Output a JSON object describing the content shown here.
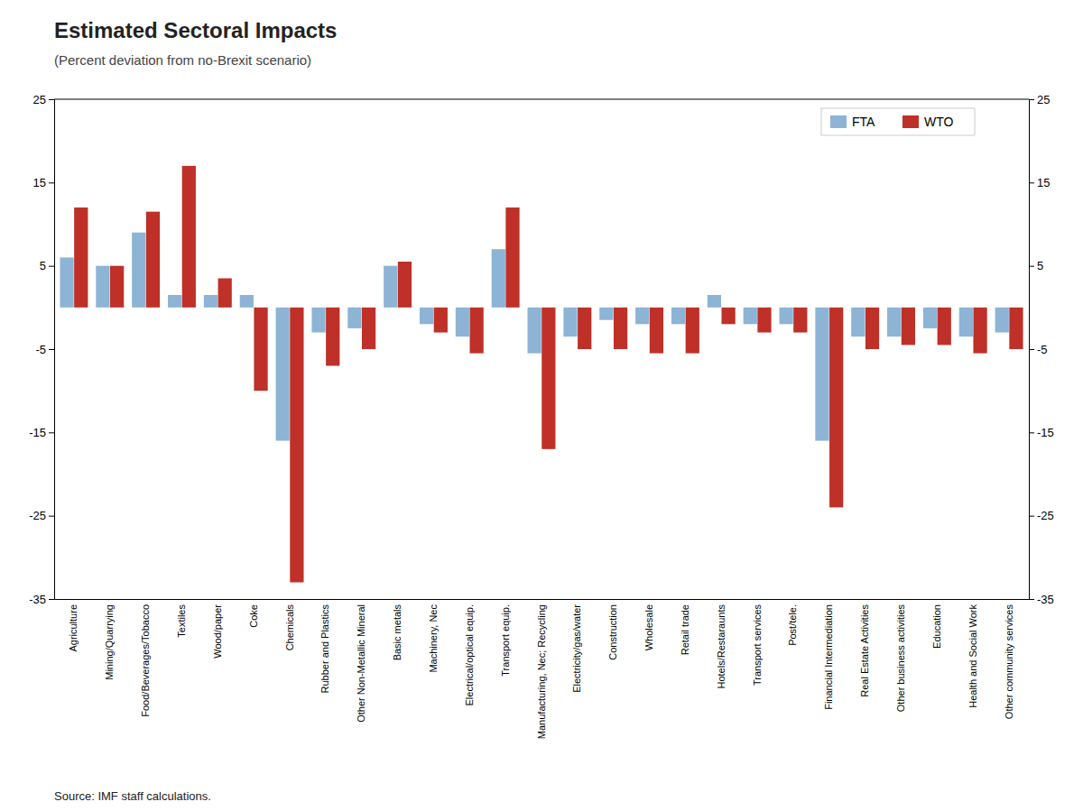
{
  "chart_data": {
    "type": "bar",
    "title": "Estimated Sectoral Impacts",
    "subtitle": "(Percent deviation  from no-Brexit scenario)",
    "source": "Source: IMF staff calculations.",
    "categories": [
      "Agriculture",
      "Mining/Quarrying",
      "Food/Beverages/Tobacco",
      "Textiles",
      "Wood/paper",
      "Coke",
      "Chemicals",
      "Rubber and Plastics",
      "Other Non-Metallic Mineral",
      "Basic metals",
      "Machinery, Nec",
      "Electrical/optical equip.",
      "Transport equip.",
      "Manufacturing, Nec; Recycling",
      "Electricity/gas/water",
      "Construction",
      "Wholesale",
      "Retail trade",
      "Hotels/Restaraunts",
      "Transport services",
      "Post/tele.",
      "Financial Intermediation",
      "Real Estate Activities",
      "Other business activities",
      "Education",
      "Health and Social Work",
      "Other community services"
    ],
    "series": [
      {
        "name": "FTA",
        "color": "#8DB4D4",
        "values": [
          6.0,
          5.0,
          9.0,
          1.5,
          1.5,
          1.5,
          -16.0,
          -3.0,
          -2.5,
          5.0,
          -2.0,
          -3.5,
          7.0,
          -5.5,
          -3.5,
          -1.5,
          -2.0,
          -2.0,
          1.5,
          -2.0,
          -2.0,
          -16.0,
          -3.5,
          -3.5,
          -2.5,
          -3.5,
          -3.0
        ]
      },
      {
        "name": "WTO",
        "color": "#BE3028",
        "values": [
          12.0,
          5.0,
          11.5,
          17.0,
          3.5,
          -10.0,
          -33.0,
          -7.0,
          -5.0,
          5.5,
          -3.0,
          -5.5,
          12.0,
          -17.0,
          -5.0,
          -5.0,
          -5.5,
          -5.5,
          -2.0,
          -3.0,
          -3.0,
          -24.0,
          -5.0,
          -4.5,
          -4.5,
          -5.5,
          -5.0
        ]
      }
    ],
    "ylim": [
      -35,
      25
    ],
    "yticks": [
      -35,
      -25,
      -15,
      -5,
      5,
      15,
      25
    ],
    "y2lim": [
      -35,
      25
    ],
    "y2ticks": [
      -35,
      -25,
      -15,
      -5,
      5,
      15,
      25
    ],
    "legend": "upper right",
    "grid": false
  }
}
